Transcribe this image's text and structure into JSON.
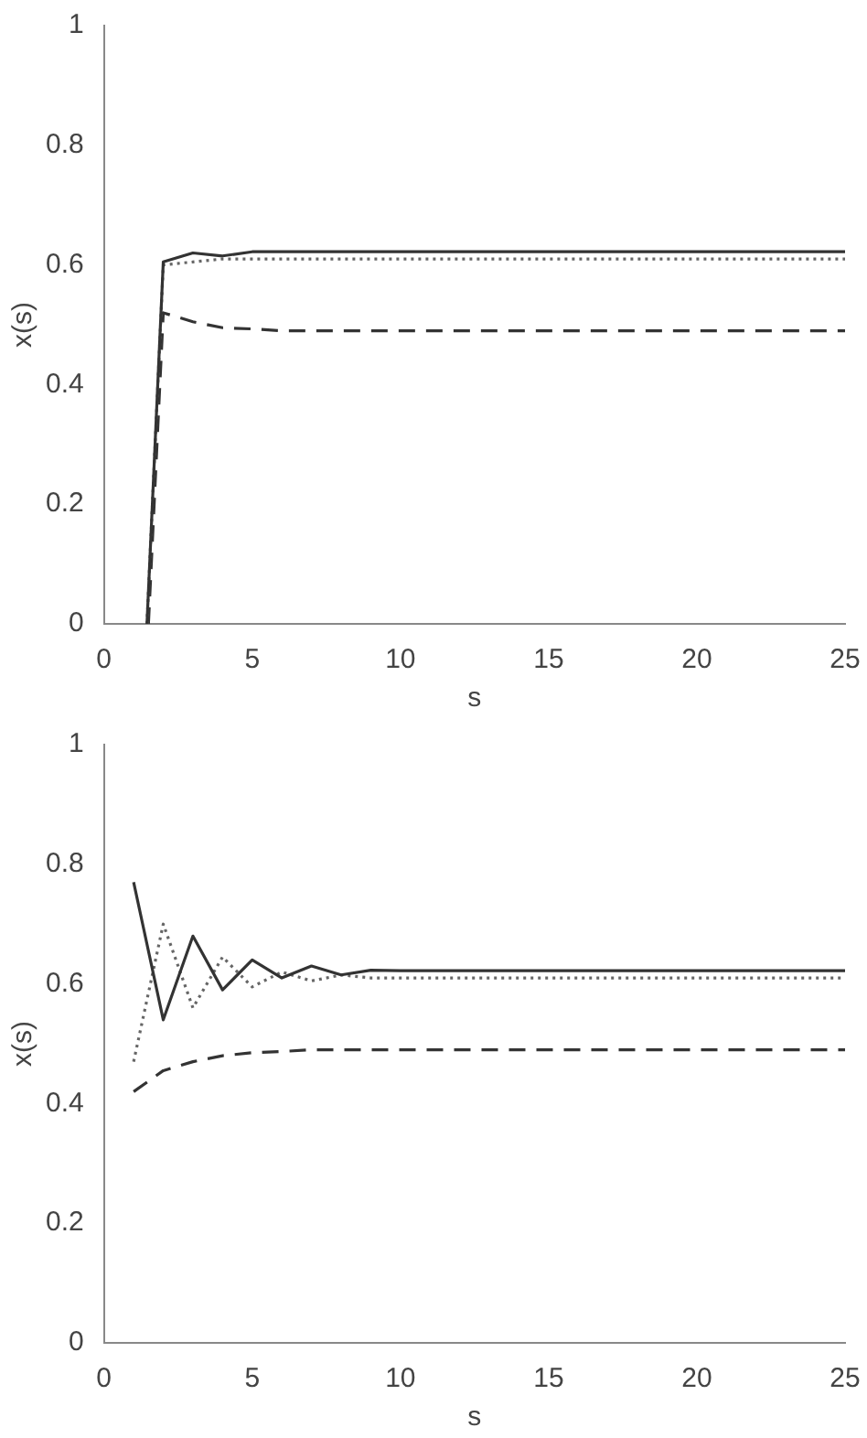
{
  "chart_data": [
    {
      "type": "line",
      "xlabel": "s",
      "ylabel": "x(s)",
      "xlim": [
        0,
        25
      ],
      "ylim": [
        0,
        1
      ],
      "xticks": [
        0,
        5,
        10,
        15,
        20,
        25
      ],
      "yticks": [
        0,
        0.2,
        0.4,
        0.6,
        0.8,
        1
      ],
      "grid": false,
      "legend": false,
      "marker": "none",
      "series": [
        {
          "color": "#333333",
          "line_style": "solid",
          "x": [
            1.45,
            2,
            3,
            4,
            5,
            6,
            7,
            8,
            25
          ],
          "values": [
            0,
            0.605,
            0.62,
            0.615,
            0.622,
            0.622,
            0.622,
            0.622,
            0.622
          ]
        },
        {
          "color": "#666666",
          "line_style": "dotted",
          "x": [
            1.45,
            2,
            3,
            4,
            5,
            6,
            7,
            8,
            25
          ],
          "values": [
            0,
            0.6,
            0.605,
            0.61,
            0.61,
            0.61,
            0.61,
            0.61,
            0.61
          ]
        },
        {
          "color": "#333333",
          "line_style": "dashed",
          "x": [
            1.5,
            2,
            3,
            4,
            5,
            6,
            7,
            8,
            25
          ],
          "values": [
            0,
            0.52,
            0.505,
            0.495,
            0.493,
            0.49,
            0.49,
            0.49,
            0.49
          ]
        }
      ]
    },
    {
      "type": "line",
      "xlabel": "s",
      "ylabel": "x(s)",
      "xlim": [
        0,
        25
      ],
      "ylim": [
        0,
        1
      ],
      "xticks": [
        0,
        5,
        10,
        15,
        20,
        25
      ],
      "yticks": [
        0,
        0.2,
        0.4,
        0.6,
        0.8,
        1
      ],
      "grid": false,
      "legend": false,
      "marker": "none",
      "series": [
        {
          "color": "#333333",
          "line_style": "solid",
          "x": [
            1,
            2,
            3,
            4,
            5,
            6,
            7,
            8,
            9,
            10,
            25
          ],
          "values": [
            0.77,
            0.54,
            0.68,
            0.59,
            0.64,
            0.61,
            0.63,
            0.615,
            0.623,
            0.622,
            0.622
          ]
        },
        {
          "color": "#666666",
          "line_style": "dotted",
          "x": [
            1,
            2,
            3,
            4,
            5,
            6,
            7,
            8,
            9,
            10,
            25
          ],
          "values": [
            0.47,
            0.7,
            0.56,
            0.645,
            0.595,
            0.62,
            0.605,
            0.615,
            0.61,
            0.61,
            0.61
          ]
        },
        {
          "color": "#333333",
          "line_style": "dashed",
          "x": [
            1,
            2,
            3,
            4,
            5,
            6,
            7,
            8,
            9,
            10,
            25
          ],
          "values": [
            0.42,
            0.455,
            0.47,
            0.48,
            0.485,
            0.487,
            0.49,
            0.49,
            0.49,
            0.49,
            0.49
          ]
        }
      ]
    }
  ]
}
